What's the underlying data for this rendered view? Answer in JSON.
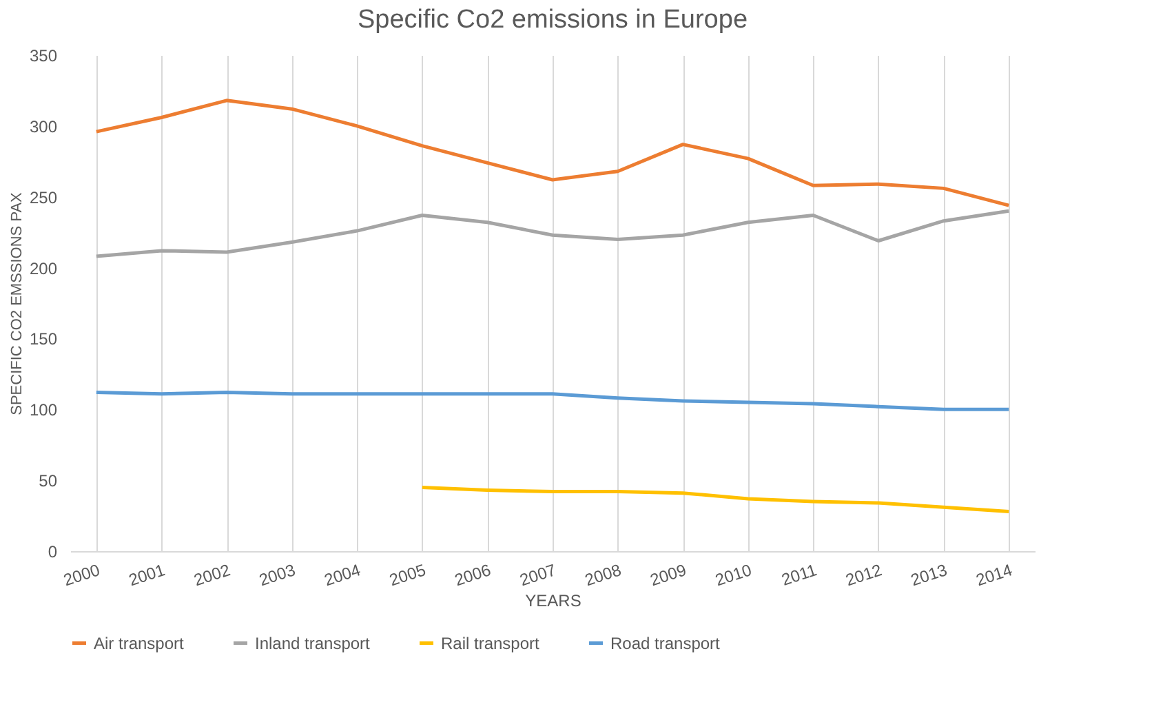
{
  "chart_data": {
    "type": "line",
    "title": "Specific Co2 emissions in Europe",
    "xlabel": "YEARS",
    "ylabel": "SPECIFIC CO2 EMSSIONS PAX",
    "categories": [
      "2000",
      "2001",
      "2002",
      "2003",
      "2004",
      "2005",
      "2006",
      "2007",
      "2008",
      "2009",
      "2010",
      "2011",
      "2012",
      "2013",
      "2014"
    ],
    "ylim": [
      0,
      350
    ],
    "yticks": [
      0,
      50,
      100,
      150,
      200,
      250,
      300,
      350
    ],
    "grid": "x",
    "legend": "bottom",
    "marker": "none",
    "line_style": "solid",
    "series": [
      {
        "name": "Air transport",
        "color": "#ed7d31",
        "values": [
          296,
          306,
          318,
          312,
          300,
          286,
          274,
          262,
          268,
          287,
          277,
          258,
          259,
          256,
          244
        ]
      },
      {
        "name": "Inland transport",
        "color": "#a5a5a5",
        "values": [
          208,
          212,
          211,
          218,
          226,
          237,
          232,
          223,
          220,
          223,
          232,
          237,
          219,
          233,
          240
        ]
      },
      {
        "name": "Rail transport",
        "color": "#ffc000",
        "values": [
          null,
          null,
          null,
          null,
          null,
          45,
          43,
          42,
          42,
          41,
          37,
          35,
          34,
          31,
          28
        ]
      },
      {
        "name": "Road transport",
        "color": "#5b9bd5",
        "values": [
          112,
          111,
          112,
          111,
          111,
          111,
          111,
          111,
          108,
          106,
          105,
          104,
          102,
          100,
          100
        ]
      }
    ]
  }
}
